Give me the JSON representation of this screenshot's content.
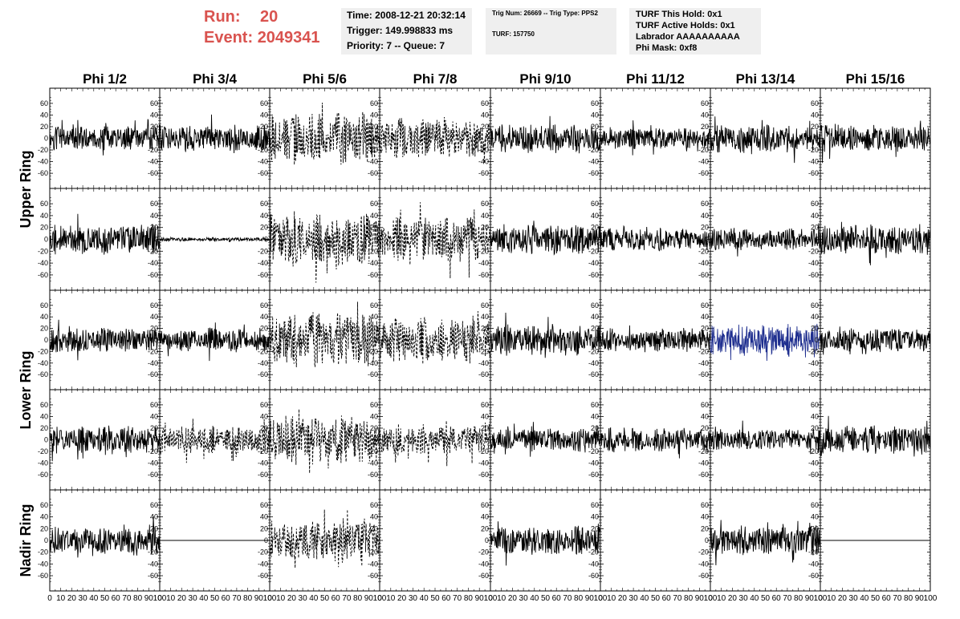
{
  "header": {
    "run_label": "Run:",
    "run_value": "20",
    "event_label": "Event:",
    "event_value": "2049341"
  },
  "info_box_1": {
    "time": "Time: 2008-12-21 20:32:14",
    "trigger": "Trigger: 149.998833 ms",
    "priority": "Priority: 7 -- Queue: 7"
  },
  "info_box_2": {
    "trig": "Trig Num: 26669 -- Trig Type: PPS2",
    "turf": "TURF: 157750"
  },
  "info_box_3": {
    "hold": "TURF This Hold: 0x1",
    "active": "TURF Active Holds: 0x1",
    "labrador": "Labrador AAAAAAAAAA",
    "phimask": "Phi Mask: 0xf8"
  },
  "columns": [
    "Phi 1/2",
    "Phi 3/4",
    "Phi 5/6",
    "Phi 7/8",
    "Phi 9/10",
    "Phi 11/12",
    "Phi 13/14",
    "Phi 15/16"
  ],
  "row_groups": [
    {
      "label": "Upper Ring",
      "rows": [
        0,
        1
      ]
    },
    {
      "label": "Lower Ring",
      "rows": [
        2,
        3
      ]
    },
    {
      "label": "Nadir Ring",
      "rows": [
        4
      ]
    }
  ],
  "chart_data": {
    "type": "line",
    "ylim": [
      -75,
      75
    ],
    "xlim": [
      0,
      100
    ],
    "yticks": [
      -60,
      -40,
      -20,
      0,
      20,
      40,
      60
    ],
    "xticks": [
      0,
      10,
      20,
      30,
      40,
      50,
      60,
      70,
      80,
      90,
      100
    ],
    "xtick_labels": [
      "0",
      "10",
      "20",
      "30",
      "40",
      "50",
      "60",
      "70",
      "80",
      "90",
      "100"
    ],
    "line_color": "#000000",
    "highlight_color": "#1f2f8f",
    "panels": [
      [
        {
          "s": "solid",
          "a": 10
        },
        {
          "s": "solid",
          "a": 11
        },
        {
          "s": "dashed",
          "a": 22
        },
        {
          "s": "dashed",
          "a": 18
        },
        {
          "s": "solid",
          "a": 12
        },
        {
          "s": "solid",
          "a": 9
        },
        {
          "s": "solid",
          "a": 12
        },
        {
          "s": "solid",
          "a": 11
        }
      ],
      [
        {
          "s": "solid",
          "a": 12
        },
        {
          "s": "solid",
          "a": 1.5
        },
        {
          "s": "dashed",
          "a": 22
        },
        {
          "s": "dashed",
          "a": 18
        },
        {
          "s": "solid",
          "a": 12
        },
        {
          "s": "solid",
          "a": 9
        },
        {
          "s": "solid",
          "a": 9
        },
        {
          "s": "solid",
          "a": 12
        }
      ],
      [
        {
          "s": "solid",
          "a": 10
        },
        {
          "s": "solid",
          "a": 10
        },
        {
          "s": "dashed",
          "a": 24
        },
        {
          "s": "dashed",
          "a": 20
        },
        {
          "s": "solid",
          "a": 13
        },
        {
          "s": "solid",
          "a": 10
        },
        {
          "s": "blue",
          "a": 14
        },
        {
          "s": "solid",
          "a": 10
        }
      ],
      [
        {
          "s": "solid",
          "a": 11
        },
        {
          "s": "dashed",
          "a": 12
        },
        {
          "s": "dashed",
          "a": 20
        },
        {
          "s": "dashed",
          "a": 13
        },
        {
          "s": "solid",
          "a": 10
        },
        {
          "s": "solid",
          "a": 10
        },
        {
          "s": "solid",
          "a": 9
        },
        {
          "s": "solid",
          "a": 12
        }
      ],
      [
        {
          "s": "solid",
          "a": 11
        },
        {
          "s": "flat",
          "a": 0
        },
        {
          "s": "dashed",
          "a": 18
        },
        {
          "s": "none",
          "a": 0
        },
        {
          "s": "solid",
          "a": 12
        },
        {
          "s": "none",
          "a": 0
        },
        {
          "s": "solid",
          "a": 12
        },
        {
          "s": "flat",
          "a": 0
        }
      ]
    ]
  }
}
